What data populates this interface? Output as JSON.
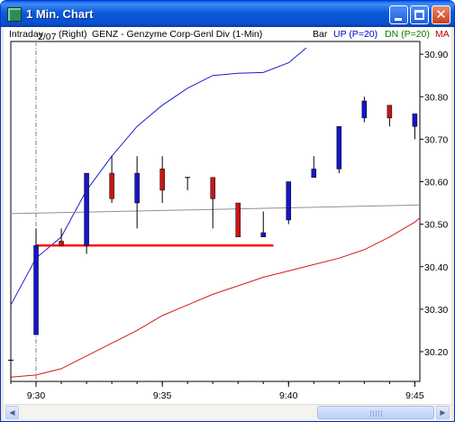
{
  "window": {
    "title": "1 Min. Chart",
    "controls": {
      "minimize": "minimize",
      "maximize": "maximize",
      "close": "✕"
    }
  },
  "infobar": {
    "mode": "Intraday",
    "scale": "(Right)",
    "symbol": "GENZ - Genzyme Corp-Genl Div",
    "interval": "(1-Min)",
    "chart_style": "Bar",
    "up_label": "UP (P=20)",
    "dn_label": "DN (P=20)",
    "ma_label": "MA"
  },
  "colors": {
    "up": "#1515c8",
    "down": "#c81515",
    "upper_band": "#1c1cd0",
    "lower_band": "#d01c1c",
    "ma_line": "#909090",
    "support_line": "#ff1010",
    "date_divider": "#808080",
    "up_label": "#0000d0",
    "dn_label": "#008000",
    "ma_label": "#c00000"
  },
  "chart_data": {
    "type": "candlestick",
    "date_marker": "2/07",
    "x_ticks": [
      {
        "label": "9:30",
        "t": 0
      },
      {
        "label": "9:35",
        "t": 5
      },
      {
        "label": "9:40",
        "t": 10
      },
      {
        "label": "9:45",
        "t": 15
      }
    ],
    "y_ticks": [
      "30.90",
      "30.80",
      "30.70",
      "30.60",
      "30.50",
      "30.40",
      "30.30",
      "30.20"
    ],
    "ylim": [
      30.13,
      30.93
    ],
    "xlim": [
      -1,
      15.2
    ],
    "candles": [
      {
        "t": -1,
        "open": 30.18,
        "close": 30.13,
        "high": 30.19,
        "low": 30.13,
        "dir": "tick"
      },
      {
        "t": 0,
        "open": 30.24,
        "close": 30.45,
        "high": 30.49,
        "low": 30.24,
        "dir": "up"
      },
      {
        "t": 1,
        "open": 30.45,
        "close": 30.46,
        "high": 30.49,
        "low": 30.45,
        "dir": "down"
      },
      {
        "t": 2,
        "open": 30.45,
        "close": 30.62,
        "high": 30.62,
        "low": 30.43,
        "dir": "up"
      },
      {
        "t": 3,
        "open": 30.62,
        "close": 30.56,
        "high": 30.66,
        "low": 30.55,
        "dir": "down"
      },
      {
        "t": 4,
        "open": 30.55,
        "close": 30.62,
        "high": 30.66,
        "low": 30.49,
        "dir": "up"
      },
      {
        "t": 5,
        "open": 30.63,
        "close": 30.58,
        "high": 30.66,
        "low": 30.55,
        "dir": "down"
      },
      {
        "t": 6,
        "open": 30.61,
        "close": 30.61,
        "high": 30.61,
        "low": 30.58,
        "dir": "flat"
      },
      {
        "t": 7,
        "open": 30.61,
        "close": 30.56,
        "high": 30.61,
        "low": 30.49,
        "dir": "down"
      },
      {
        "t": 8,
        "open": 30.55,
        "close": 30.47,
        "high": 30.55,
        "low": 30.47,
        "dir": "down"
      },
      {
        "t": 9,
        "open": 30.47,
        "close": 30.48,
        "high": 30.53,
        "low": 30.47,
        "dir": "up"
      },
      {
        "t": 10,
        "open": 30.51,
        "close": 30.6,
        "high": 30.6,
        "low": 30.5,
        "dir": "up"
      },
      {
        "t": 11,
        "open": 30.61,
        "close": 30.63,
        "high": 30.66,
        "low": 30.61,
        "dir": "up"
      },
      {
        "t": 12,
        "open": 30.63,
        "close": 30.73,
        "high": 30.73,
        "low": 30.62,
        "dir": "up"
      },
      {
        "t": 13,
        "open": 30.75,
        "close": 30.79,
        "high": 30.8,
        "low": 30.74,
        "dir": "up"
      },
      {
        "t": 14,
        "open": 30.78,
        "close": 30.75,
        "high": 30.78,
        "low": 30.73,
        "dir": "down"
      },
      {
        "t": 15,
        "open": 30.73,
        "close": 30.76,
        "high": 30.76,
        "low": 30.7,
        "dir": "up"
      }
    ],
    "series": [
      {
        "name": "UP (P=20)",
        "points": [
          [
            -1,
            30.31
          ],
          [
            0,
            30.42
          ],
          [
            1,
            30.47
          ],
          [
            2,
            30.58
          ],
          [
            3,
            30.66
          ],
          [
            4,
            30.73
          ],
          [
            5,
            30.78
          ],
          [
            6,
            30.82
          ],
          [
            7,
            30.85
          ],
          [
            8,
            30.855
          ],
          [
            9,
            30.857
          ],
          [
            10,
            30.88
          ],
          [
            10.7,
            30.915
          ]
        ]
      },
      {
        "name": "DN (P=20)",
        "points": [
          [
            -1,
            30.14
          ],
          [
            0,
            30.145
          ],
          [
            1,
            30.16
          ],
          [
            2,
            30.19
          ],
          [
            3,
            30.22
          ],
          [
            4,
            30.25
          ],
          [
            5,
            30.285
          ],
          [
            6,
            30.31
          ],
          [
            7,
            30.335
          ],
          [
            8,
            30.355
          ],
          [
            9,
            30.375
          ],
          [
            10,
            30.39
          ],
          [
            11,
            30.405
          ],
          [
            12,
            30.42
          ],
          [
            13,
            30.44
          ],
          [
            14,
            30.47
          ],
          [
            15,
            30.505
          ],
          [
            15.2,
            30.515
          ]
        ]
      },
      {
        "name": "MA",
        "points": [
          [
            -1,
            30.525
          ],
          [
            15.2,
            30.545
          ]
        ]
      }
    ],
    "support_line": {
      "value": 30.45,
      "t_start": 0,
      "t_end": 9.4
    },
    "date_divider_t": 0
  },
  "scrollbar": {
    "left_arrow": "◀",
    "right_arrow": "▶"
  }
}
